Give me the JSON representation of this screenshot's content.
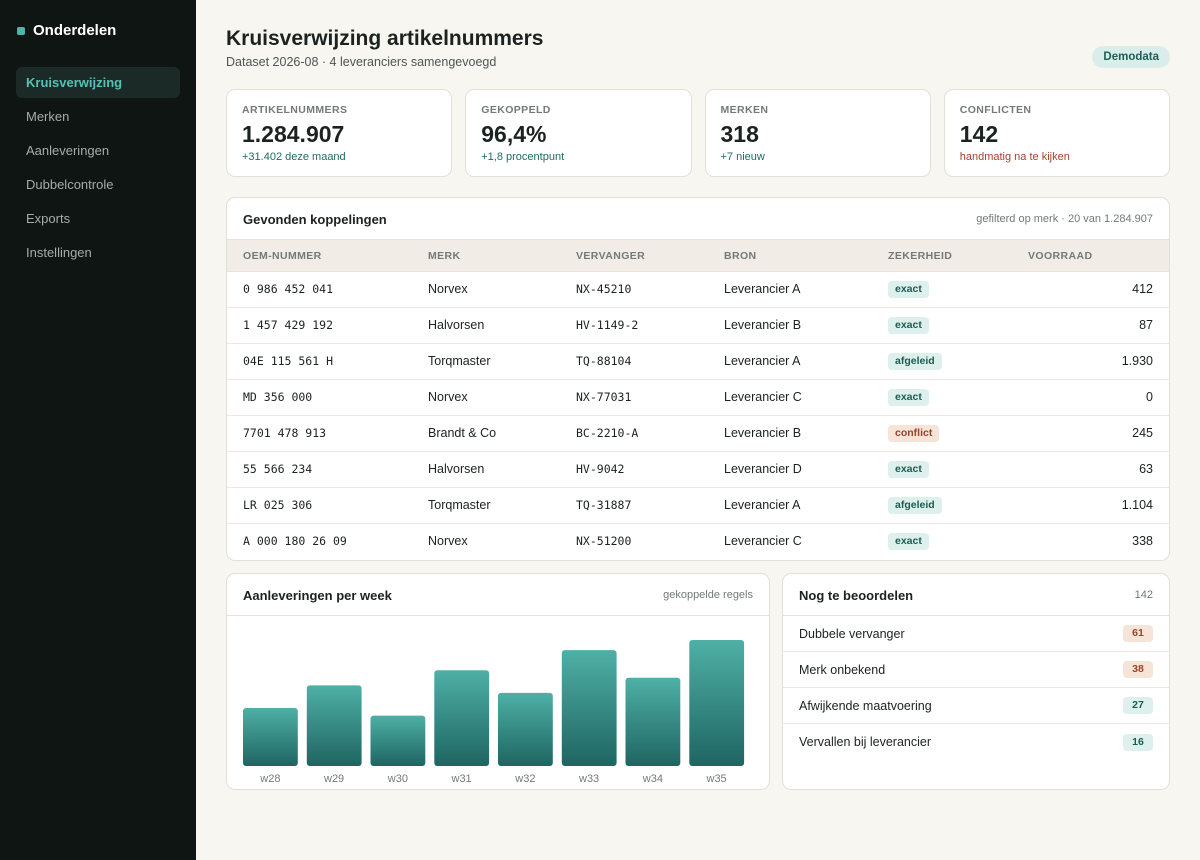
{
  "sidebar": {
    "brand": "Onderdelen",
    "items": [
      {
        "label": "Kruisverwijzing",
        "active": true
      },
      {
        "label": "Merken"
      },
      {
        "label": "Aanleveringen"
      },
      {
        "label": "Dubbelcontrole"
      },
      {
        "label": "Exports"
      },
      {
        "label": "Instellingen"
      }
    ]
  },
  "header": {
    "title": "Kruisverwijzing artikelnummers",
    "subtitle": "Dataset 2026-08 · 4 leveranciers samengevoegd",
    "badge": "Demodata"
  },
  "kpis": [
    {
      "label": "ARTIKELNUMMERS",
      "value": "1.284.907",
      "delta": "+31.402 deze maand"
    },
    {
      "label": "GEKOPPELD",
      "value": "96,4%",
      "delta": "+1,8 procentpunt"
    },
    {
      "label": "MERKEN",
      "value": "318",
      "delta": "+7 nieuw"
    },
    {
      "label": "CONFLICTEN",
      "value": "142",
      "delta": "handmatig na te kijken"
    }
  ],
  "matches": {
    "title": "Gevonden koppelingen",
    "meta": "gefilterd op merk · 20 van 1.284.907",
    "columns": [
      "OEM-NUMMER",
      "MERK",
      "VERVANGER",
      "BRON",
      "ZEKERHEID",
      "VOORRAAD"
    ],
    "rows": [
      {
        "oem": "0 986 452 041",
        "brand": "Norvex",
        "replacement": "NX-45210",
        "source": "Leverancier A",
        "confidence": "exact",
        "stock": "412"
      },
      {
        "oem": "1 457 429 192",
        "brand": "Halvorsen",
        "replacement": "HV-1149-2",
        "source": "Leverancier B",
        "confidence": "exact",
        "stock": "87"
      },
      {
        "oem": "04E 115 561 H",
        "brand": "Torqmaster",
        "replacement": "TQ-88104",
        "source": "Leverancier A",
        "confidence": "afgeleid",
        "stock": "1.930"
      },
      {
        "oem": "MD 356 000",
        "brand": "Norvex",
        "replacement": "NX-77031",
        "source": "Leverancier C",
        "confidence": "exact",
        "stock": "0"
      },
      {
        "oem": "7701 478 913",
        "brand": "Brandt & Co",
        "replacement": "BC-2210-A",
        "source": "Leverancier B",
        "confidence": "conflict",
        "stock": "245"
      },
      {
        "oem": "55 566 234",
        "brand": "Halvorsen",
        "replacement": "HV-9042",
        "source": "Leverancier D",
        "confidence": "exact",
        "stock": "63"
      },
      {
        "oem": "LR 025 306",
        "brand": "Torqmaster",
        "replacement": "TQ-31887",
        "source": "Leverancier A",
        "confidence": "afgeleid",
        "stock": "1.104"
      },
      {
        "oem": "A 000 180 26 09",
        "brand": "Norvex",
        "replacement": "NX-51200",
        "source": "Leverancier C",
        "confidence": "exact",
        "stock": "338"
      }
    ]
  },
  "chart": {
    "title": "Aanleveringen per week",
    "meta": "gekoppelde regels"
  },
  "chart_data": {
    "type": "bar",
    "categories": [
      "w28",
      "w29",
      "w30",
      "w31",
      "w32",
      "w33",
      "w34",
      "w35"
    ],
    "values": [
      46,
      64,
      40,
      76,
      58,
      92,
      70,
      100
    ],
    "ylim": [
      0,
      100
    ],
    "grid": false,
    "color": "#3f9f95"
  },
  "review": {
    "title": "Nog te beoordelen",
    "total": "142",
    "items": [
      {
        "label": "Dubbele vervanger",
        "count": "61",
        "tone": "warm"
      },
      {
        "label": "Merk onbekend",
        "count": "38",
        "tone": "warm"
      },
      {
        "label": "Afwijkende maatvoering",
        "count": "27",
        "tone": "cool"
      },
      {
        "label": "Vervallen bij leverancier",
        "count": "16",
        "tone": "cool"
      }
    ]
  }
}
